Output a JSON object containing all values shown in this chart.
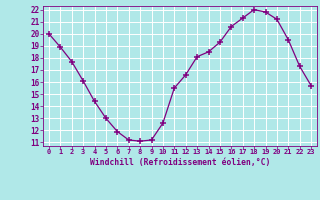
{
  "x": [
    0,
    1,
    2,
    3,
    4,
    5,
    6,
    7,
    8,
    9,
    10,
    11,
    12,
    13,
    14,
    15,
    16,
    17,
    18,
    19,
    20,
    21,
    22,
    23
  ],
  "y": [
    20.0,
    18.9,
    17.7,
    16.1,
    14.4,
    13.0,
    11.9,
    11.2,
    11.1,
    11.2,
    12.6,
    15.5,
    16.6,
    18.1,
    18.5,
    19.3,
    20.6,
    21.3,
    22.0,
    21.8,
    21.2,
    19.5,
    17.3,
    15.7
  ],
  "line_color": "#800080",
  "marker": "+",
  "marker_color": "#800080",
  "bg_color": "#b0e8e8",
  "grid_color": "#ffffff",
  "xlabel": "Windchill (Refroidissement éolien,°C)",
  "xlabel_color": "#800080",
  "tick_color": "#800080",
  "ylim": [
    11,
    22
  ],
  "xlim": [
    -0.5,
    23.5
  ],
  "yticks": [
    11,
    12,
    13,
    14,
    15,
    16,
    17,
    18,
    19,
    20,
    21,
    22
  ],
  "xticks": [
    0,
    1,
    2,
    3,
    4,
    5,
    6,
    7,
    8,
    9,
    10,
    11,
    12,
    13,
    14,
    15,
    16,
    17,
    18,
    19,
    20,
    21,
    22,
    23
  ]
}
